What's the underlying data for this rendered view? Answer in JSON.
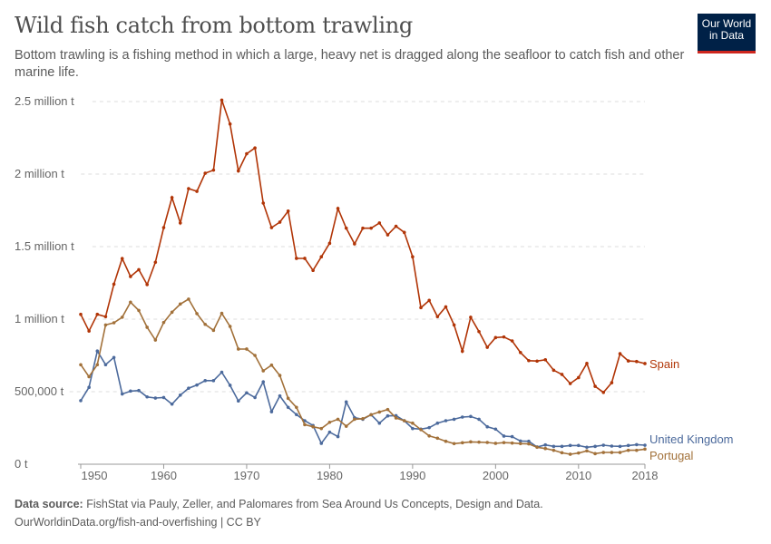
{
  "header": {
    "title": "Wild fish catch from bottom trawling",
    "subtitle": "Bottom trawling is a fishing method in which a large, heavy net is dragged along the seafloor to catch fish and other marine life.",
    "logo": "Our World in Data"
  },
  "footer": {
    "source_label": "Data source:",
    "source": "FishStat via Pauly, Zeller, and Palomares from Sea Around Us Concepts, Design and Data.",
    "url": "OurWorldinData.org/fish-and-overfishing | CC BY"
  },
  "chart_data": {
    "type": "line",
    "title": "Wild fish catch from bottom trawling",
    "xlim": [
      1950,
      2018
    ],
    "ylim": [
      0,
      2500000
    ],
    "x_ticks": [
      1950,
      1960,
      1970,
      1980,
      1990,
      2000,
      2010,
      2018
    ],
    "y_ticks": [
      {
        "value": 0,
        "label": "0 t"
      },
      {
        "value": 500000,
        "label": "500,000 t"
      },
      {
        "value": 1000000,
        "label": "1 million t"
      },
      {
        "value": 1500000,
        "label": "1.5 million t"
      },
      {
        "value": 2000000,
        "label": "2 million t"
      },
      {
        "value": 2500000,
        "label": "2.5 million t"
      }
    ],
    "grid": "horizontal dashed",
    "legend": "line-end labels",
    "x_start": 1950,
    "series": [
      {
        "name": "Spain",
        "color": "#b13507",
        "values": [
          1.033,
          0.918,
          1.033,
          1.017,
          1.241,
          1.418,
          1.294,
          1.341,
          1.238,
          1.392,
          1.631,
          1.838,
          1.663,
          1.9,
          1.881,
          2.006,
          2.027,
          2.51,
          2.345,
          2.022,
          2.14,
          2.18,
          1.8,
          1.631,
          1.669,
          1.745,
          1.419,
          1.419,
          1.336,
          1.43,
          1.523,
          1.763,
          1.627,
          1.519,
          1.627,
          1.627,
          1.663,
          1.581,
          1.64,
          1.598,
          1.43,
          1.079,
          1.129,
          1.017,
          1.085,
          0.96,
          0.779,
          1.013,
          0.914,
          0.806,
          0.873,
          0.877,
          0.85,
          0.77,
          0.714,
          0.711,
          0.72,
          0.648,
          0.619,
          0.556,
          0.597,
          0.695,
          0.537,
          0.495,
          0.562,
          0.762,
          0.712,
          0.708,
          0.694
        ],
        "unit": "million t"
      },
      {
        "name": "United Kingdom",
        "color": "#4c6a9c",
        "values": [
          0.438,
          0.53,
          0.78,
          0.686,
          0.736,
          0.484,
          0.504,
          0.508,
          0.464,
          0.456,
          0.46,
          0.414,
          0.476,
          0.524,
          0.546,
          0.576,
          0.576,
          0.634,
          0.544,
          0.436,
          0.492,
          0.46,
          0.568,
          0.362,
          0.471,
          0.392,
          0.342,
          0.3,
          0.267,
          0.144,
          0.221,
          0.19,
          0.429,
          0.321,
          0.31,
          0.341,
          0.283,
          0.333,
          0.335,
          0.3,
          0.246,
          0.242,
          0.252,
          0.283,
          0.3,
          0.31,
          0.325,
          0.329,
          0.31,
          0.258,
          0.242,
          0.194,
          0.19,
          0.16,
          0.158,
          0.119,
          0.133,
          0.123,
          0.123,
          0.129,
          0.129,
          0.117,
          0.123,
          0.131,
          0.125,
          0.123,
          0.129,
          0.135,
          0.131
        ],
        "unit": "million t"
      },
      {
        "name": "Portugal",
        "color": "#a2713a",
        "values": [
          0.686,
          0.603,
          0.686,
          0.96,
          0.975,
          1.013,
          1.117,
          1.06,
          0.944,
          0.856,
          0.977,
          1.048,
          1.104,
          1.138,
          1.038,
          0.964,
          0.923,
          1.04,
          0.95,
          0.794,
          0.794,
          0.75,
          0.644,
          0.683,
          0.612,
          0.454,
          0.392,
          0.273,
          0.258,
          0.246,
          0.289,
          0.31,
          0.262,
          0.31,
          0.314,
          0.341,
          0.36,
          0.377,
          0.319,
          0.3,
          0.283,
          0.238,
          0.195,
          0.179,
          0.158,
          0.142,
          0.148,
          0.154,
          0.152,
          0.15,
          0.144,
          0.149,
          0.146,
          0.142,
          0.14,
          0.117,
          0.108,
          0.096,
          0.079,
          0.069,
          0.077,
          0.092,
          0.073,
          0.081,
          0.081,
          0.081,
          0.096,
          0.096,
          0.104
        ],
        "unit": "million t"
      }
    ]
  }
}
